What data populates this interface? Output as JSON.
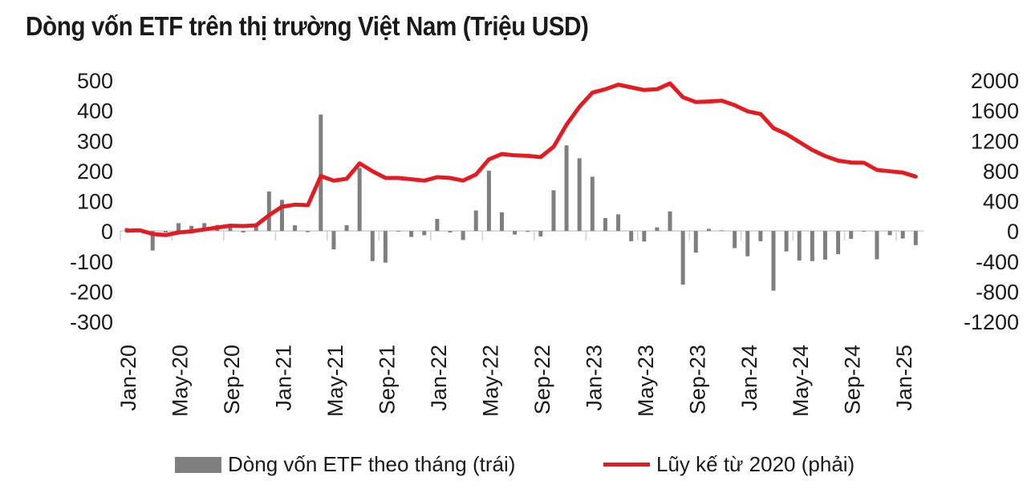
{
  "title": "Dòng vốn ETF trên thị trường Việt Nam (Triệu USD)",
  "colors": {
    "bar": "#7f7f7f",
    "line": "#e31b23",
    "axis": "#d0d0d0"
  },
  "chart_data": {
    "type": "bar+line",
    "title": "Dòng vốn ETF trên thị trường Việt Nam (Triệu USD)",
    "months": [
      "Jan-20",
      "Feb-20",
      "Mar-20",
      "Apr-20",
      "May-20",
      "Jun-20",
      "Jul-20",
      "Aug-20",
      "Sep-20",
      "Oct-20",
      "Nov-20",
      "Dec-20",
      "Jan-21",
      "Feb-21",
      "Mar-21",
      "Apr-21",
      "May-21",
      "Jun-21",
      "Jul-21",
      "Aug-21",
      "Sep-21",
      "Oct-21",
      "Nov-21",
      "Dec-21",
      "Jan-22",
      "Feb-22",
      "Mar-22",
      "Apr-22",
      "May-22",
      "Jun-22",
      "Jul-22",
      "Aug-22",
      "Sep-22",
      "Oct-22",
      "Nov-22",
      "Dec-22",
      "Jan-23",
      "Feb-23",
      "Mar-23",
      "Apr-23",
      "May-23",
      "Jun-23",
      "Jul-23",
      "Aug-23",
      "Sep-23",
      "Oct-23",
      "Nov-23",
      "Dec-23",
      "Jan-24",
      "Feb-24",
      "Mar-24",
      "Apr-24",
      "May-24",
      "Jun-24",
      "Jul-24",
      "Aug-24",
      "Sep-24",
      "Oct-24",
      "Nov-24",
      "Dec-24",
      "Jan-25",
      "Feb-25"
    ],
    "x_tick_labels": [
      "Jan-20",
      "May-20",
      "Sep-20",
      "Jan-21",
      "May-21",
      "Sep-21",
      "Jan-22",
      "May-22",
      "Sep-22",
      "Jan-23",
      "May-23",
      "Sep-23",
      "Jan-24",
      "May-24",
      "Sep-24",
      "Jan-25"
    ],
    "series": [
      {
        "name": "Dòng vốn ETF theo tháng (trái)",
        "type": "bar",
        "axis": "left",
        "values": [
          10,
          0,
          -65,
          -5,
          26,
          17,
          26,
          20,
          12,
          -5,
          14,
          131,
          103,
          19,
          -4,
          386,
          -61,
          19,
          209,
          -100,
          -105,
          0,
          -20,
          -14,
          40,
          -5,
          -30,
          68,
          200,
          62,
          -12,
          -3,
          -18,
          135,
          284,
          241,
          180,
          43,
          55,
          -34,
          -35,
          12,
          65,
          -178,
          -72,
          7,
          2,
          -57,
          -84,
          -34,
          -198,
          -68,
          -98,
          -100,
          -95,
          -77,
          -26,
          0,
          -94,
          -14,
          -25,
          -47
        ]
      },
      {
        "name": "Lũy kế từ 2020 (phải)",
        "type": "line",
        "axis": "right",
        "values": [
          5,
          10,
          -40,
          -55,
          -20,
          -5,
          20,
          45,
          70,
          65,
          75,
          209,
          321,
          349,
          342,
          728,
          668,
          692,
          897,
          792,
          703,
          703,
          686,
          668,
          714,
          703,
          668,
          749,
          950,
          1021,
          1003,
          996,
          979,
          1117,
          1410,
          1647,
          1834,
          1880,
          1940,
          1904,
          1869,
          1880,
          1958,
          1774,
          1710,
          1717,
          1728,
          1668,
          1586,
          1551,
          1364,
          1286,
          1180,
          1074,
          993,
          933,
          908,
          905,
          809,
          791,
          774,
          721
        ]
      }
    ],
    "left_axis": {
      "ylim": [
        -300,
        500
      ],
      "ticks": [
        "500",
        "400",
        "300",
        "200",
        "100",
        "0",
        "-100",
        "-200",
        "-300"
      ]
    },
    "right_axis": {
      "ylim": [
        -1200,
        2000
      ],
      "ticks": [
        "2000",
        "1600",
        "1200",
        "800",
        "400",
        "0",
        "-400",
        "-800",
        "-1200"
      ]
    },
    "legend_placement": "bottom",
    "grid": false
  }
}
